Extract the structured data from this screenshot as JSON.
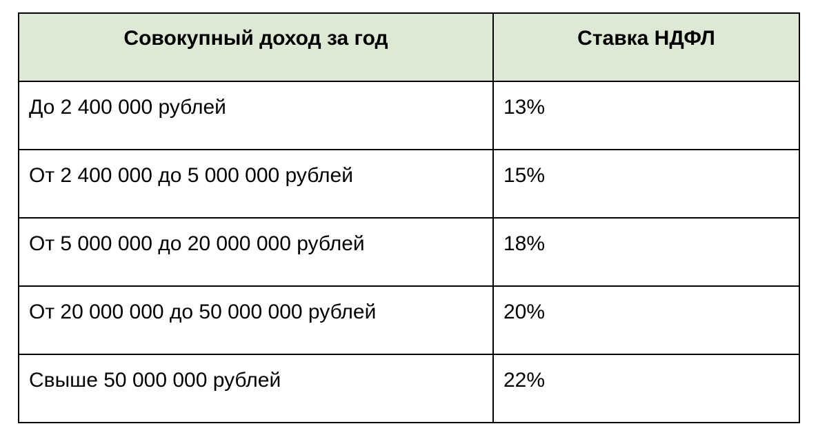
{
  "table": {
    "headers": [
      "Совокупный доход за год",
      "Ставка НДФЛ"
    ],
    "rows": [
      [
        "До 2 400 000 рублей",
        "13%"
      ],
      [
        "От 2 400 000 до 5 000 000 рублей",
        "15%"
      ],
      [
        "От 5 000 000 до 20 000 000 рублей",
        "18%"
      ],
      [
        "От 20 000 000 до 50 000 000 рублей",
        "20%"
      ],
      [
        "Свыше 50 000 000 рублей",
        "22%"
      ]
    ],
    "header_background": "#dde9d4",
    "border_color": "#000000"
  }
}
